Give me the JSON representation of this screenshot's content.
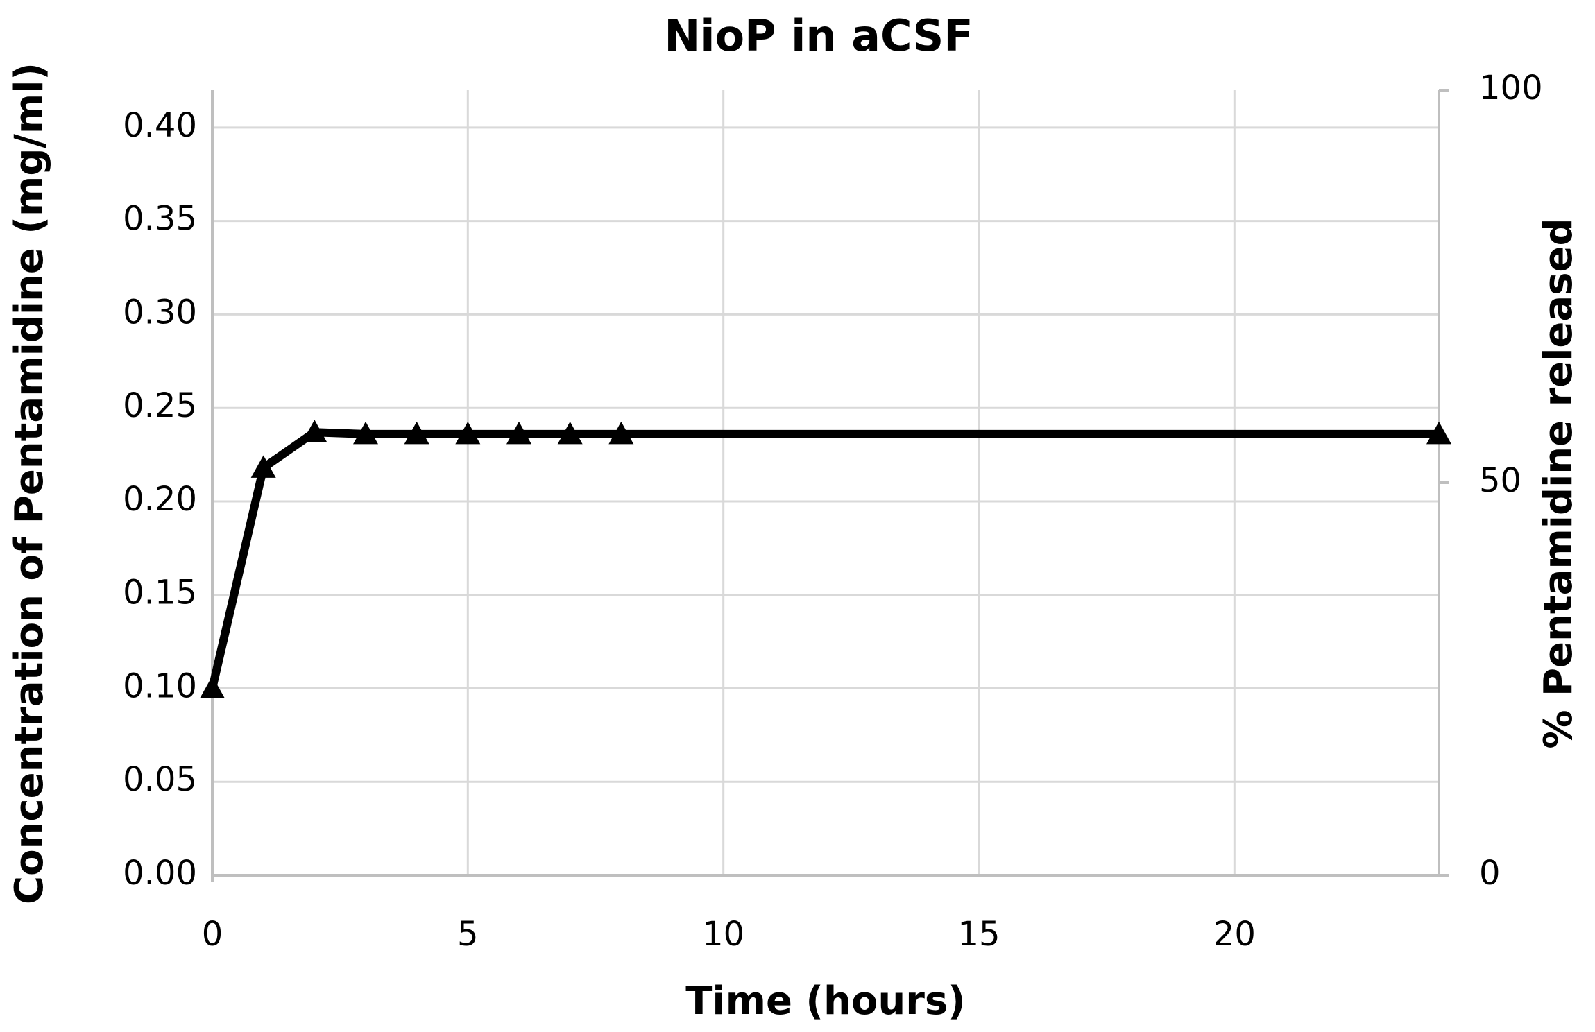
{
  "chart_data": {
    "type": "line",
    "title": "NioP in aCSF",
    "x_label": "Time (hours)",
    "y_label": "Concentration of Pentamidine (mg/ml)",
    "y2_label": "% Pentamidine released",
    "x": [
      0,
      1,
      2,
      3,
      4,
      5,
      6,
      7,
      8,
      24
    ],
    "series": [
      {
        "color": "#000000",
        "marker": "triangle",
        "values": [
          0.1,
          0.218,
          0.237,
          0.236,
          0.236,
          0.236,
          0.236,
          0.236,
          0.236,
          0.236
        ]
      }
    ],
    "xlim": [
      0,
      24
    ],
    "xticks": [
      0,
      5,
      10,
      15,
      20
    ],
    "ylim": [
      0,
      0.42
    ],
    "yticks": [
      {
        "value": 0,
        "label": "0.00"
      },
      {
        "value": 0.05,
        "label": "0.05"
      },
      {
        "value": 0.1,
        "label": "0.10"
      },
      {
        "value": 0.15,
        "label": "0.15"
      },
      {
        "value": 0.2,
        "label": "0.20"
      },
      {
        "value": 0.25,
        "label": "0.25"
      },
      {
        "value": 0.3,
        "label": "0.30"
      },
      {
        "value": 0.35,
        "label": "0.35"
      },
      {
        "value": 0.4,
        "label": "0.40"
      }
    ],
    "y2lim": [
      0,
      100
    ],
    "y2ticks": [
      0,
      50,
      100
    ],
    "grid": true
  }
}
